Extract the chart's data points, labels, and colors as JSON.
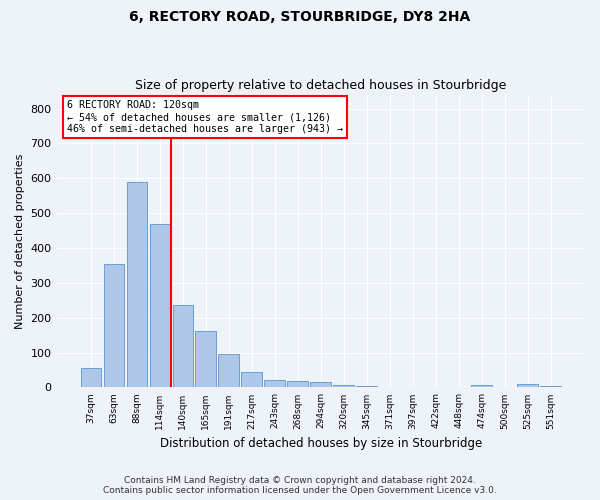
{
  "title": "6, RECTORY ROAD, STOURBRIDGE, DY8 2HA",
  "subtitle": "Size of property relative to detached houses in Stourbridge",
  "xlabel": "Distribution of detached houses by size in Stourbridge",
  "ylabel": "Number of detached properties",
  "footer_line1": "Contains HM Land Registry data © Crown copyright and database right 2024.",
  "footer_line2": "Contains public sector information licensed under the Open Government Licence v3.0.",
  "categories": [
    "37sqm",
    "63sqm",
    "88sqm",
    "114sqm",
    "140sqm",
    "165sqm",
    "191sqm",
    "217sqm",
    "243sqm",
    "268sqm",
    "294sqm",
    "320sqm",
    "345sqm",
    "371sqm",
    "397sqm",
    "422sqm",
    "448sqm",
    "474sqm",
    "500sqm",
    "525sqm",
    "551sqm"
  ],
  "values": [
    55,
    355,
    590,
    470,
    235,
    162,
    96,
    44,
    20,
    18,
    15,
    7,
    3,
    2,
    2,
    1,
    0,
    8,
    0,
    9,
    5
  ],
  "bar_color": "#aec6e8",
  "bar_edge_color": "#5a96cc",
  "annotation_line1": "6 RECTORY ROAD: 120sqm",
  "annotation_line2": "← 54% of detached houses are smaller (1,126)",
  "annotation_line3": "46% of semi-detached houses are larger (943) →",
  "vline_color": "red",
  "vline_x_index": 3.5,
  "ylim": [
    0,
    840
  ],
  "yticks": [
    0,
    100,
    200,
    300,
    400,
    500,
    600,
    700,
    800
  ],
  "bg_color": "#eef2f9",
  "grid_color": "#ffffff",
  "title_fontsize": 10,
  "subtitle_fontsize": 9,
  "xlabel_fontsize": 8.5,
  "ylabel_fontsize": 8,
  "footer_fontsize": 6.5
}
